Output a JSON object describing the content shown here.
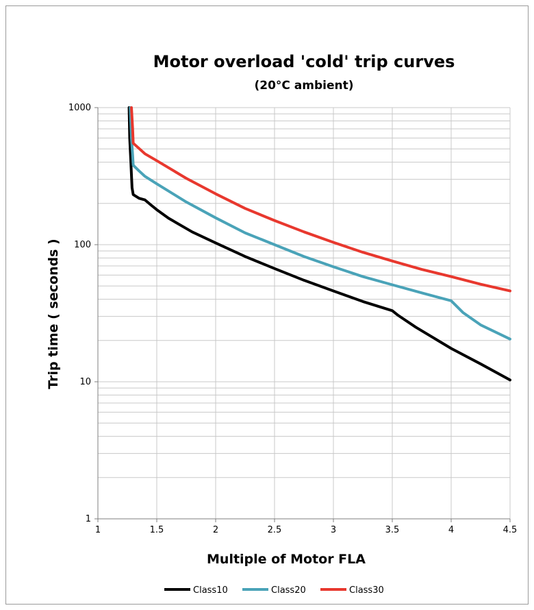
{
  "chart_data": {
    "type": "line",
    "title": "Motor overload 'cold' trip curves",
    "subtitle": "(20°C ambient)",
    "xlabel": "Multiple of Motor FLA",
    "ylabel": "Trip time ( seconds )",
    "xlim": [
      1,
      4.5
    ],
    "ylim": [
      1,
      1000
    ],
    "yscale": "log",
    "grid": "major and minor horizontal, major vertical",
    "legend_position": "bottom",
    "x_ticks": [
      "1",
      "1.5",
      "2",
      "2.5",
      "3",
      "3.5",
      "4",
      "4.5"
    ],
    "y_ticks": [
      "1",
      "10",
      "100",
      "1000"
    ],
    "series": [
      {
        "name": "Class10",
        "color": "#000000",
        "points": [
          [
            1.265,
            1000
          ],
          [
            1.27,
            600
          ],
          [
            1.28,
            400
          ],
          [
            1.29,
            260
          ],
          [
            1.3,
            232
          ],
          [
            1.35,
            218
          ],
          [
            1.4,
            212
          ],
          [
            1.45,
            195
          ],
          [
            1.5,
            180
          ],
          [
            1.6,
            156
          ],
          [
            1.8,
            124
          ],
          [
            2.0,
            103
          ],
          [
            2.25,
            82
          ],
          [
            2.5,
            67
          ],
          [
            2.75,
            55
          ],
          [
            3.0,
            46
          ],
          [
            3.25,
            38.5
          ],
          [
            3.5,
            33
          ],
          [
            3.55,
            30.5
          ],
          [
            3.7,
            25
          ],
          [
            4.0,
            17.5
          ],
          [
            4.25,
            13.5
          ],
          [
            4.5,
            10.3
          ]
        ]
      },
      {
        "name": "Class20",
        "color": "#4aa3b8",
        "points": [
          [
            1.275,
            1000
          ],
          [
            1.285,
            600
          ],
          [
            1.295,
            450
          ],
          [
            1.3,
            380
          ],
          [
            1.35,
            345
          ],
          [
            1.4,
            315
          ],
          [
            1.5,
            278
          ],
          [
            1.75,
            205
          ],
          [
            2.0,
            157
          ],
          [
            2.25,
            122
          ],
          [
            2.5,
            100
          ],
          [
            2.75,
            82
          ],
          [
            3.0,
            69
          ],
          [
            3.25,
            58.5
          ],
          [
            3.5,
            51
          ],
          [
            3.75,
            44.5
          ],
          [
            4.0,
            39
          ],
          [
            4.1,
            32
          ],
          [
            4.25,
            26
          ],
          [
            4.5,
            20.5
          ]
        ]
      },
      {
        "name": "Class30",
        "color": "#e8382e",
        "points": [
          [
            1.285,
            1000
          ],
          [
            1.295,
            700
          ],
          [
            1.3,
            550
          ],
          [
            1.4,
            460
          ],
          [
            1.5,
            410
          ],
          [
            1.75,
            305
          ],
          [
            2.0,
            235
          ],
          [
            2.25,
            184
          ],
          [
            2.5,
            150
          ],
          [
            2.75,
            124
          ],
          [
            3.0,
            104
          ],
          [
            3.25,
            88
          ],
          [
            3.5,
            76
          ],
          [
            3.75,
            66
          ],
          [
            4.0,
            58.5
          ],
          [
            4.25,
            51.5
          ],
          [
            4.5,
            46
          ]
        ]
      }
    ]
  }
}
